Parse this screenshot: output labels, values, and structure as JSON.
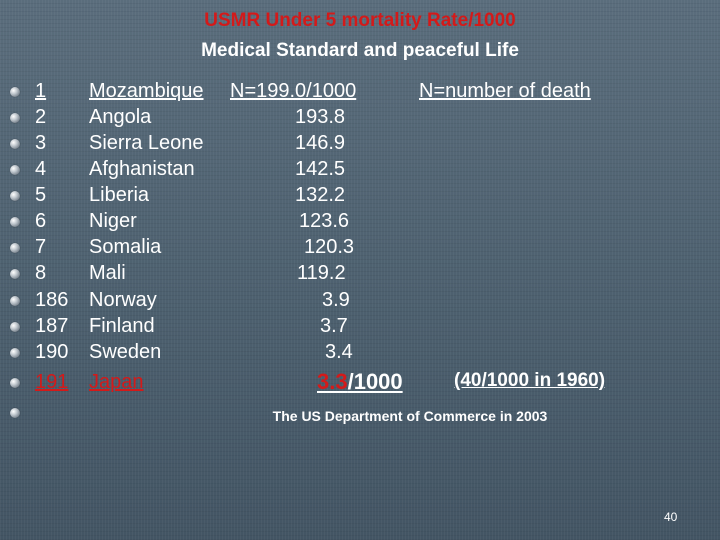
{
  "header": {
    "title": "USMR Under 5 mortality Rate/1000",
    "subtitle": "Medical Standard and peaceful Life"
  },
  "rows": [
    {
      "rank": "1",
      "country": "Mozambique",
      "value": "N=199.0/1000",
      "note": "N=number of death"
    },
    {
      "rank": "2",
      "country": "Angola",
      "value": "193.8"
    },
    {
      "rank": "3",
      "country": "Sierra Leone",
      "value": "146.9"
    },
    {
      "rank": "4",
      "country": "Afghanistan",
      "value": "142.5"
    },
    {
      "rank": "5",
      "country": "Liberia",
      "value": "132.2"
    },
    {
      "rank": "6",
      "country": "Niger",
      "value": "123.6"
    },
    {
      "rank": "7",
      "country": "Somalia",
      "value": "120.3"
    },
    {
      "rank": "8",
      "country": "Mali",
      "value": "119.2"
    },
    {
      "rank": "186",
      "country": "Norway",
      "value": "3.9"
    },
    {
      "rank": "187",
      "country": "Finland",
      "value": "3.7"
    },
    {
      "rank": "190",
      "country": "Sweden",
      "value": "3.4"
    }
  ],
  "highlight": {
    "rank": "191",
    "country": "Japan",
    "value": "3.3",
    "unit": "/1000",
    "comparison": "(40/1000  in 1960)"
  },
  "source": "The US Department of Commerce in 2003",
  "page_number": "40",
  "colors": {
    "accent_red": "#d31a1a",
    "background": "#52656f",
    "text": "#ffffff"
  }
}
